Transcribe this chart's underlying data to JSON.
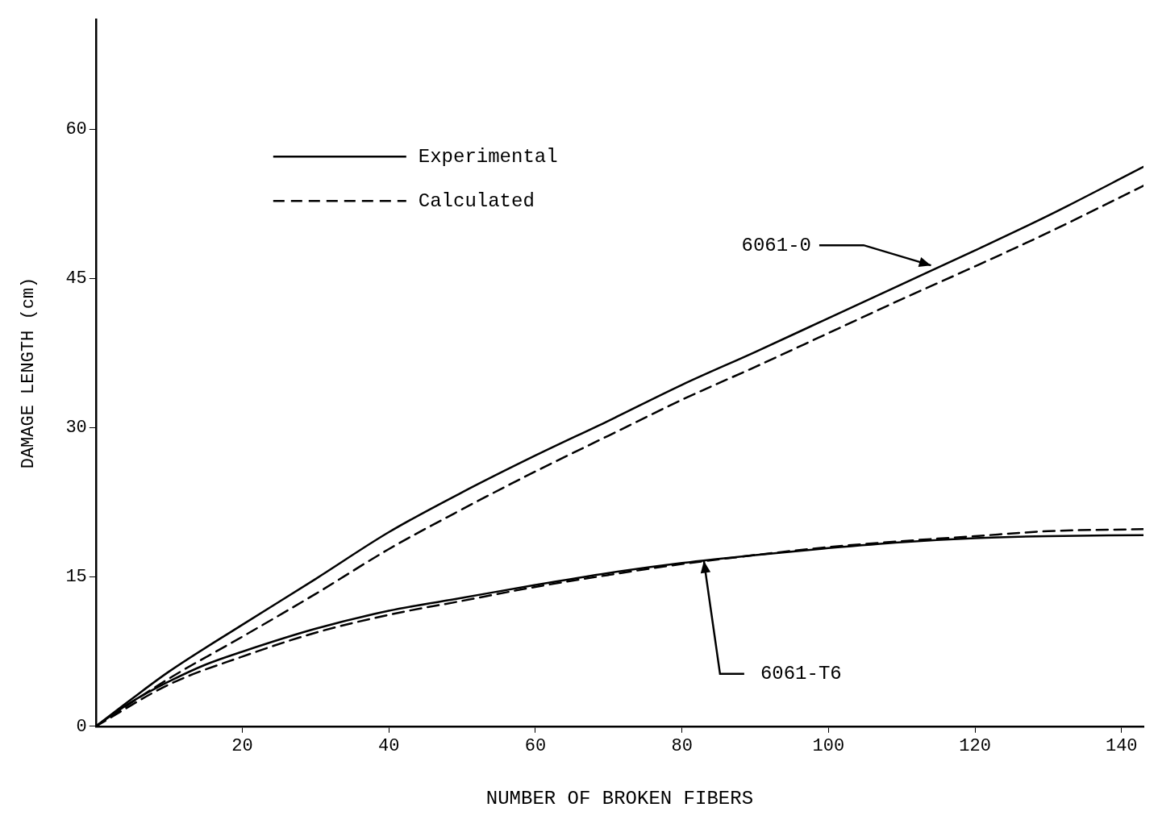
{
  "chart_data": {
    "type": "line",
    "xlabel": "NUMBER OF BROKEN FIBERS",
    "ylabel": "DAMAGE LENGTH (cm)",
    "xlim": [
      0,
      143
    ],
    "ylim": [
      0,
      71
    ],
    "xticks": [
      20,
      40,
      60,
      80,
      100,
      120,
      140
    ],
    "yticks": [
      0,
      15,
      30,
      45,
      60
    ],
    "grid": false,
    "marker": "none",
    "series": [
      {
        "color": "#000000",
        "line_style": "solid",
        "x": [
          0,
          5,
          10,
          20,
          30,
          40,
          50,
          60,
          70,
          80,
          90,
          100,
          110,
          120,
          130,
          143
        ],
        "values": [
          0,
          2.8,
          5.5,
          10.2,
          14.8,
          19.5,
          23.5,
          27.2,
          30.7,
          34.3,
          37.6,
          41,
          44.4,
          47.8,
          51.3,
          56.2
        ]
      },
      {
        "color": "#000000",
        "line_style": "dashed",
        "x": [
          0,
          10,
          20,
          30,
          40,
          50,
          60,
          70,
          80,
          90,
          100,
          110,
          120,
          130,
          143
        ],
        "values": [
          0,
          4.8,
          9,
          13.3,
          17.8,
          21.8,
          25.6,
          29.2,
          32.8,
          36.1,
          39.5,
          42.9,
          46.2,
          49.6,
          54.3
        ]
      },
      {
        "color": "#000000",
        "line_style": "solid",
        "x": [
          0,
          5,
          10,
          15,
          20,
          30,
          40,
          50,
          60,
          70,
          80,
          90,
          100,
          110,
          120,
          130,
          143
        ],
        "values": [
          0,
          2.5,
          4.5,
          6.2,
          7.5,
          9.8,
          11.6,
          12.9,
          14.2,
          15.4,
          16.4,
          17.2,
          17.9,
          18.5,
          18.9,
          19.1,
          19.2
        ]
      },
      {
        "color": "#000000",
        "line_style": "dashed",
        "x": [
          0,
          10,
          20,
          30,
          40,
          50,
          60,
          70,
          80,
          90,
          100,
          110,
          120,
          130,
          143
        ],
        "values": [
          0,
          4.2,
          7,
          9.4,
          11.2,
          12.6,
          14,
          15.2,
          16.3,
          17.2,
          18,
          18.6,
          19.1,
          19.6,
          19.8
        ]
      }
    ],
    "annotations": [
      "Experimental",
      "Calculated",
      {
        "text": "6061-0",
        "x": 114,
        "y": 46.3
      },
      {
        "text": "6061-T6",
        "x": 83,
        "y": 16.6
      }
    ]
  }
}
